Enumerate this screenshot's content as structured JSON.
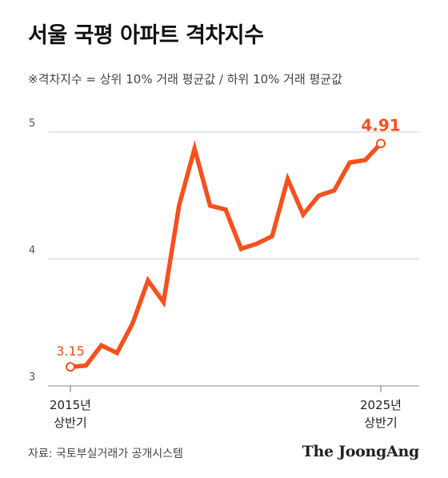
{
  "header": {
    "title": "서울 국평 아파트 격차지수",
    "subtitle": "※격차지수 = 상위 10% 거래 평균값 / 하위 10% 거래 평균값"
  },
  "footer": {
    "source": "자료: 국토부실거래가 공개시스템",
    "logo_text": "The JoongAng"
  },
  "chart_data": {
    "type": "line",
    "ylim": [
      3,
      5
    ],
    "yticks": [
      3,
      4,
      5
    ],
    "grid": true,
    "x_start_label": [
      "2015년",
      "상반기"
    ],
    "x_end_label": [
      "2025년",
      "상반기"
    ],
    "series": [
      {
        "color": "#f4511e",
        "values": [
          3.15,
          3.16,
          3.32,
          3.26,
          3.49,
          3.83,
          3.66,
          4.42,
          4.87,
          4.42,
          4.39,
          4.08,
          4.12,
          4.18,
          4.63,
          4.35,
          4.5,
          4.54,
          4.76,
          4.78,
          4.91
        ]
      }
    ],
    "start_label": "3.15",
    "end_label": "4.91"
  }
}
